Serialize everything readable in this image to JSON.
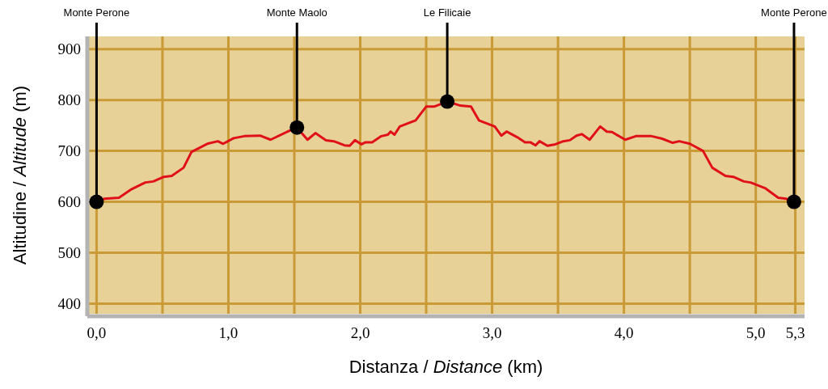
{
  "chart_data": {
    "type": "line",
    "xlabel": "Distanza / Distance (km)",
    "ylabel": "Altitudine / Altitude (m)",
    "xlim": [
      -0.07,
      5.37
    ],
    "ylim": [
      380,
      925
    ],
    "xticks": [
      {
        "value": 0,
        "label": "0,0"
      },
      {
        "value": 0.5,
        "label": null
      },
      {
        "value": 1,
        "label": "1,0"
      },
      {
        "value": 1.5,
        "label": null
      },
      {
        "value": 2,
        "label": "2,0"
      },
      {
        "value": 2.5,
        "label": null
      },
      {
        "value": 3,
        "label": "3,0"
      },
      {
        "value": 3.5,
        "label": null
      },
      {
        "value": 4,
        "label": "4,0"
      },
      {
        "value": 4.5,
        "label": null
      },
      {
        "value": 5,
        "label": "5,0"
      },
      {
        "value": 5.3,
        "label": "5,3"
      }
    ],
    "yticks": [
      400,
      500,
      600,
      700,
      800,
      900
    ],
    "grid": true,
    "marker": "none",
    "line_style": "solid",
    "series": [
      {
        "color": "#e0101a",
        "x": [
          0,
          0.06,
          0.17,
          0.26,
          0.37,
          0.43,
          0.51,
          0.57,
          0.66,
          0.72,
          0.84,
          0.92,
          0.96,
          1.04,
          1.12,
          1.24,
          1.32,
          1.45,
          1.52,
          1.6,
          1.66,
          1.74,
          1.8,
          1.88,
          1.92,
          1.96,
          2.01,
          2.04,
          2.09,
          2.16,
          2.21,
          2.23,
          2.26,
          2.3,
          2.42,
          2.5,
          2.56,
          2.66,
          2.76,
          2.84,
          2.9,
          3.02,
          3.07,
          3.11,
          3.19,
          3.25,
          3.29,
          3.33,
          3.36,
          3.42,
          3.48,
          3.54,
          3.59,
          3.64,
          3.68,
          3.74,
          3.82,
          3.87,
          3.91,
          4.01,
          4.09,
          4.21,
          4.29,
          4.37,
          4.42,
          4.5,
          4.6,
          4.67,
          4.77,
          4.83,
          4.91,
          4.96,
          5.07,
          5.17,
          5.23,
          5.29
        ],
        "values": [
          600,
          606,
          608,
          624,
          638,
          640,
          649,
          651,
          667,
          698,
          714,
          719,
          714,
          725,
          729,
          730,
          722,
          738,
          746,
          722,
          735,
          721,
          719,
          711,
          710,
          721,
          713,
          717,
          717,
          729,
          732,
          738,
          732,
          748,
          760,
          787,
          787,
          797,
          789,
          787,
          760,
          748,
          730,
          738,
          727,
          717,
          717,
          711,
          719,
          710,
          713,
          719,
          721,
          730,
          733,
          722,
          748,
          738,
          737,
          722,
          729,
          729,
          724,
          716,
          719,
          714,
          700,
          667,
          651,
          649,
          640,
          638,
          627,
          608,
          606,
          600
        ]
      }
    ],
    "annotations": [
      {
        "text": "Monte Perone",
        "x": 0,
        "y": 600
      },
      {
        "text": "Monte Maolo",
        "x": 1.52,
        "y": 746
      },
      {
        "text": "Le Filicaie",
        "x": 2.66,
        "y": 797
      },
      {
        "text": "Monte Perone",
        "x": 5.29,
        "y": 600
      }
    ]
  }
}
